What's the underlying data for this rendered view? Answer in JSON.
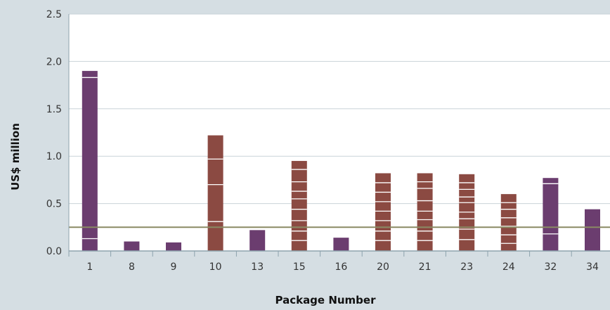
{
  "chart_data": {
    "type": "bar",
    "xlabel": "Package Number",
    "ylabel": "US$ million",
    "ylim": [
      0,
      2.5
    ],
    "yticks": [
      "0.0",
      "0.5",
      "1.0",
      "1.5",
      "2.0",
      "2.5"
    ],
    "grid": "horizontal",
    "reference_line": {
      "value": 0.25,
      "color": "#8a8a63"
    },
    "categories": [
      "1",
      "8",
      "9",
      "10",
      "13",
      "15",
      "16",
      "20",
      "21",
      "23",
      "24",
      "32",
      "34"
    ],
    "values": [
      1.9,
      0.1,
      0.09,
      1.22,
      0.22,
      0.95,
      0.14,
      0.82,
      0.82,
      0.81,
      0.6,
      0.77,
      0.44
    ],
    "bar_colors": [
      "#6b3d6f",
      "#6b3d6f",
      "#6b3d6f",
      "#8b4a42",
      "#6b3d6f",
      "#8b4a42",
      "#6b3d6f",
      "#8b4a42",
      "#8b4a42",
      "#8b4a42",
      "#8b4a42",
      "#6b3d6f",
      "#6b3d6f"
    ],
    "segment_breaks": [
      [
        0.13,
        1.83
      ],
      [],
      [],
      [
        0.31,
        0.7,
        0.97
      ],
      [],
      [
        0.11,
        0.21,
        0.32,
        0.44,
        0.55,
        0.63,
        0.73,
        0.86
      ],
      [],
      [
        0.11,
        0.21,
        0.32,
        0.42,
        0.52,
        0.62,
        0.72
      ],
      [
        0.11,
        0.21,
        0.33,
        0.42,
        0.53,
        0.66,
        0.73
      ],
      [
        0.12,
        0.23,
        0.34,
        0.41,
        0.51,
        0.57,
        0.65,
        0.72
      ],
      [
        0.08,
        0.17,
        0.26,
        0.35,
        0.44,
        0.51
      ],
      [
        0.18,
        0.71
      ],
      []
    ],
    "colors": {
      "background": "#d5dee3",
      "plot_area": "#ffffff",
      "gridline": "#c9d3d8",
      "axis": "#8da3ad",
      "segment_line": "#ffffff"
    }
  }
}
